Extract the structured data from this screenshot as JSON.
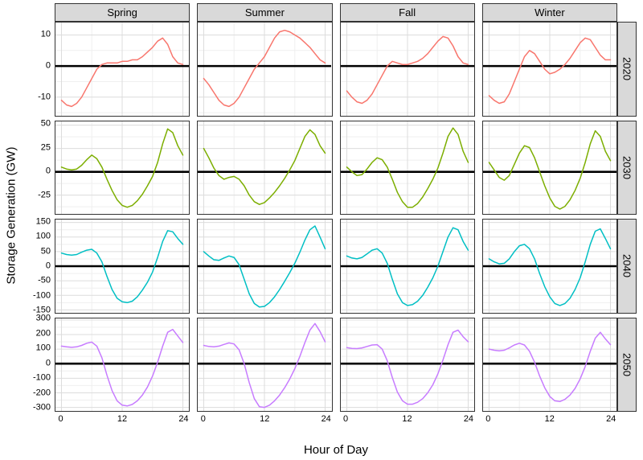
{
  "figure": {
    "x_title": "Hour of Day",
    "y_title": "Storage Generation (GW)"
  },
  "chart_data": {
    "type": "line",
    "title": "",
    "xlabel": "Hour of Day",
    "ylabel": "Storage Generation (GW)",
    "grid": true,
    "legend": "none",
    "zero_reference_line": true,
    "facet_cols": [
      "Spring",
      "Summer",
      "Fall",
      "Winter"
    ],
    "x_hours": [
      0,
      1,
      2,
      3,
      4,
      5,
      6,
      7,
      8,
      9,
      10,
      11,
      12,
      13,
      14,
      15,
      16,
      17,
      18,
      19,
      20,
      21,
      22,
      23,
      24
    ],
    "x_ticks": [
      0,
      12,
      24
    ],
    "x_minor_ticks": [
      6,
      18
    ],
    "xlim": [
      0,
      24
    ],
    "rows": [
      {
        "label": "2020",
        "color": "#F8766D",
        "ylim": [
          -16,
          14
        ],
        "y_ticks": [
          -10,
          0,
          10
        ],
        "y_minor_ticks": [
          -15,
          -5,
          5
        ],
        "series": {
          "Spring": [
            -11,
            -12.5,
            -13,
            -12,
            -10,
            -7,
            -4,
            -1,
            0.5,
            1,
            1,
            1,
            1.5,
            1.5,
            2,
            2,
            3,
            4.5,
            6,
            8,
            9,
            7,
            3,
            1,
            0.5
          ],
          "Summer": [
            -4,
            -6,
            -8.5,
            -11,
            -12.5,
            -13,
            -12,
            -10,
            -7,
            -4,
            -1,
            1,
            3,
            6,
            9,
            11,
            11.5,
            11,
            10,
            9,
            7.5,
            6,
            4,
            2,
            1
          ],
          "Fall": [
            -8,
            -10,
            -11.5,
            -12,
            -11,
            -9,
            -6,
            -3,
            0,
            1.5,
            1,
            0.5,
            0.5,
            1,
            1.5,
            2.5,
            4,
            6,
            8,
            9.5,
            9,
            6.5,
            3,
            1,
            0.5
          ],
          "Winter": [
            -9.5,
            -11,
            -12,
            -11.5,
            -9,
            -5,
            -1,
            3,
            5,
            4,
            1.5,
            -1,
            -2.5,
            -2,
            -1,
            0.5,
            2.5,
            5,
            7.5,
            9,
            8.5,
            6,
            3.5,
            2,
            2
          ]
        }
      },
      {
        "label": "2030",
        "color": "#7CAE00",
        "ylim": [
          -46,
          54
        ],
        "y_ticks": [
          -25,
          0,
          25,
          50
        ],
        "y_minor_ticks": [
          -37.5,
          -12.5,
          12.5,
          37.5
        ],
        "series": {
          "Spring": [
            5,
            3,
            2,
            3,
            7,
            13,
            18,
            14,
            5,
            -8,
            -20,
            -30,
            -36,
            -38,
            -36,
            -31,
            -24,
            -15,
            -5,
            10,
            30,
            46,
            42,
            28,
            18
          ],
          "Summer": [
            25,
            15,
            4,
            -4,
            -8,
            -6,
            -5,
            -8,
            -15,
            -25,
            -32,
            -35,
            -33,
            -28,
            -22,
            -15,
            -7,
            2,
            12,
            25,
            38,
            45,
            40,
            28,
            20
          ],
          "Fall": [
            5,
            0,
            -4,
            -3,
            3,
            10,
            15,
            13,
            5,
            -8,
            -22,
            -32,
            -38,
            -38,
            -34,
            -27,
            -18,
            -8,
            4,
            20,
            38,
            47,
            40,
            22,
            10
          ],
          "Winter": [
            10,
            2,
            -6,
            -9,
            -4,
            8,
            20,
            28,
            26,
            15,
            0,
            -15,
            -28,
            -37,
            -40,
            -37,
            -30,
            -20,
            -7,
            10,
            30,
            44,
            38,
            22,
            12
          ]
        }
      },
      {
        "label": "2040",
        "color": "#00BFC4",
        "ylim": [
          -160,
          160
        ],
        "y_ticks": [
          -150,
          -100,
          -50,
          0,
          50,
          100,
          150
        ],
        "y_minor_ticks": [
          -125,
          -75,
          -25,
          25,
          75,
          125
        ],
        "series": {
          "Spring": [
            45,
            40,
            38,
            40,
            48,
            55,
            58,
            45,
            15,
            -35,
            -80,
            -110,
            -122,
            -125,
            -120,
            -105,
            -82,
            -55,
            -20,
            30,
            85,
            122,
            118,
            95,
            75
          ],
          "Summer": [
            50,
            35,
            22,
            20,
            28,
            35,
            30,
            5,
            -45,
            -95,
            -128,
            -140,
            -138,
            -125,
            -105,
            -80,
            -52,
            -22,
            10,
            48,
            90,
            125,
            138,
            100,
            60
          ],
          "Fall": [
            35,
            28,
            25,
            30,
            42,
            55,
            60,
            45,
            10,
            -45,
            -95,
            -125,
            -135,
            -132,
            -120,
            -100,
            -72,
            -40,
            0,
            50,
            100,
            132,
            125,
            85,
            55
          ],
          "Winter": [
            25,
            15,
            8,
            10,
            25,
            50,
            70,
            75,
            60,
            25,
            -25,
            -70,
            -105,
            -128,
            -135,
            -128,
            -110,
            -80,
            -40,
            15,
            75,
            120,
            128,
            95,
            60
          ]
        }
      },
      {
        "label": "2050",
        "color": "#C77CFF",
        "ylim": [
          -330,
          310
        ],
        "y_ticks": [
          -300,
          -200,
          -100,
          0,
          100,
          200,
          300
        ],
        "y_minor_ticks": [
          -250,
          -150,
          -50,
          50,
          150,
          250
        ],
        "series": {
          "Spring": [
            120,
            115,
            112,
            115,
            125,
            140,
            148,
            120,
            40,
            -80,
            -185,
            -255,
            -285,
            -290,
            -280,
            -255,
            -215,
            -160,
            -85,
            10,
            120,
            215,
            235,
            190,
            145
          ],
          "Summer": [
            125,
            118,
            115,
            120,
            132,
            142,
            135,
            95,
            0,
            -130,
            -240,
            -295,
            -300,
            -285,
            -255,
            -215,
            -165,
            -105,
            -35,
            50,
            145,
            230,
            275,
            220,
            150
          ],
          "Fall": [
            110,
            105,
            103,
            108,
            118,
            128,
            130,
            100,
            20,
            -95,
            -195,
            -255,
            -278,
            -278,
            -265,
            -240,
            -200,
            -145,
            -70,
            25,
            130,
            215,
            230,
            185,
            150
          ],
          "Winter": [
            100,
            92,
            88,
            92,
            108,
            128,
            140,
            128,
            85,
            10,
            -85,
            -165,
            -225,
            -255,
            -260,
            -245,
            -215,
            -170,
            -105,
            -20,
            85,
            175,
            215,
            170,
            130
          ]
        }
      }
    ]
  }
}
